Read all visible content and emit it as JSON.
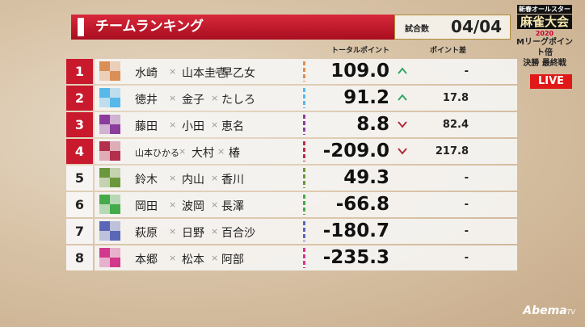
{
  "header": {
    "title": "チームランキング",
    "games_label": "試合数",
    "games": "04/04"
  },
  "logo": {
    "line1": "新春オールスター",
    "line2": "麻雀大会",
    "year": "2020",
    "sub1": "Mリーグポイント倍",
    "sub2": "決勝 最終戦"
  },
  "live": "LIVE",
  "watermark": {
    "brand": "Abema",
    "suffix": "TV"
  },
  "table": {
    "columns": {
      "points": "トータルポイント",
      "diff": "ポイント差"
    },
    "separator": "×",
    "rows": [
      {
        "rank": "1",
        "members": [
          "水崎",
          "山本圭壱",
          "早乙女"
        ],
        "points": "109.0",
        "diff": "-",
        "trend": "up",
        "color": "#d98f55"
      },
      {
        "rank": "2",
        "members": [
          "徳井",
          "金子",
          "たしろ"
        ],
        "points": "91.2",
        "diff": "17.8",
        "trend": "up",
        "color": "#58b8ea"
      },
      {
        "rank": "3",
        "members": [
          "藤田",
          "小田",
          "恵名"
        ],
        "points": "8.8",
        "diff": "82.4",
        "trend": "down",
        "color": "#8b3c9c"
      },
      {
        "rank": "4",
        "members": [
          "山本ひかる",
          "大村",
          "椿"
        ],
        "points": "-209.0",
        "diff": "217.8",
        "trend": "down",
        "color": "#b42f4c"
      },
      {
        "rank": "5",
        "members": [
          "鈴木",
          "内山",
          "香川"
        ],
        "points": "49.3",
        "diff": "-",
        "color": "#6b983b"
      },
      {
        "rank": "6",
        "members": [
          "岡田",
          "波岡",
          "長澤"
        ],
        "points": "-66.8",
        "diff": "-",
        "color": "#44aa4a"
      },
      {
        "rank": "7",
        "members": [
          "萩原",
          "日野",
          "百合沙"
        ],
        "points": "-180.7",
        "diff": "-",
        "color": "#5a66b6"
      },
      {
        "rank": "8",
        "members": [
          "本郷",
          "松本",
          "阿部"
        ],
        "points": "-235.3",
        "diff": "-",
        "color": "#d2388c"
      }
    ]
  }
}
